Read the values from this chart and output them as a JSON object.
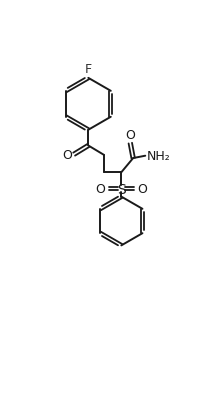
{
  "bg_color": "#ffffff",
  "line_color": "#1a1a1a",
  "text_color": "#1a1a1a",
  "label_F": "F",
  "label_O": "O",
  "label_S": "S",
  "label_NH2": "NH₂",
  "figsize": [
    2.03,
    4.1
  ],
  "dpi": 100,
  "xlim": [
    0,
    10
  ],
  "ylim": [
    0,
    20
  ]
}
